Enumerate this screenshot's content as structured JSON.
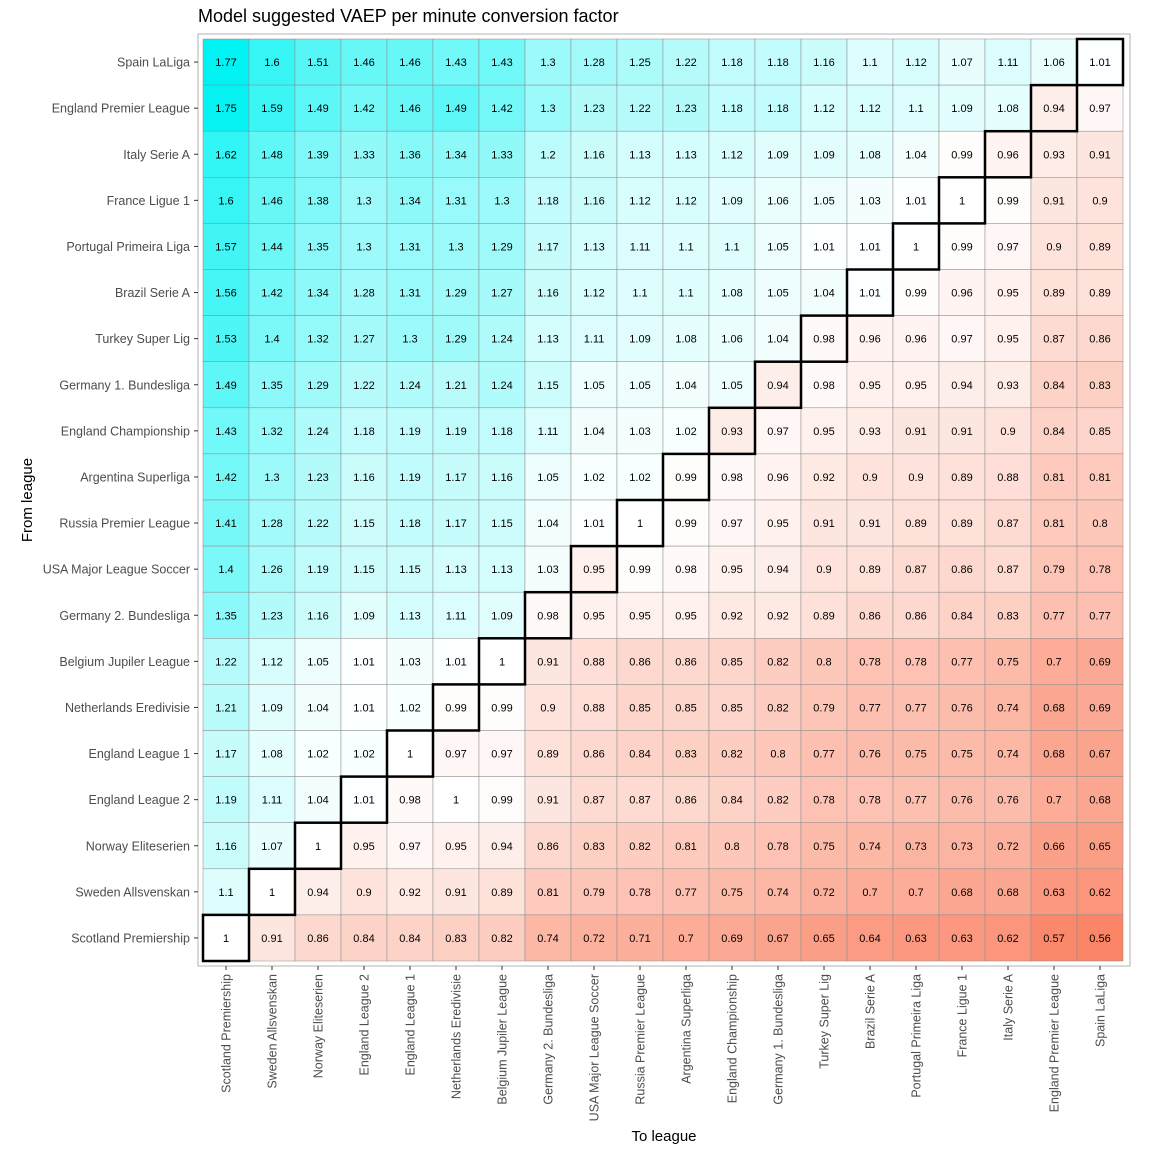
{
  "chart_data": {
    "type": "heatmap",
    "title": "Model suggested VAEP per minute conversion factor",
    "xlabel": "To league",
    "ylabel": "From league",
    "x_categories": [
      "Scotland Premiership",
      "Sweden Allsvenskan",
      "Norway Eliteserien",
      "England League 2",
      "England League 1",
      "Netherlands Eredivisie",
      "Belgium Jupiler League",
      "Germany 2. Bundesliga",
      "USA Major League Soccer",
      "Russia Premier League",
      "Argentina Superliga",
      "England Championship",
      "Germany 1. Bundesliga",
      "Turkey Super Lig",
      "Brazil Serie A",
      "Portugal Primeira Liga",
      "France Ligue 1",
      "Italy Serie A",
      "England Premier League",
      "Spain LaLiga"
    ],
    "y_categories": [
      "Spain LaLiga",
      "England Premier League",
      "Italy Serie A",
      "France Ligue 1",
      "Portugal Primeira Liga",
      "Brazil Serie A",
      "Turkey Super Lig",
      "Germany 1. Bundesliga",
      "England Championship",
      "Argentina Superliga",
      "Russia Premier League",
      "USA Major League Soccer",
      "Germany 2. Bundesliga",
      "Belgium Jupiler League",
      "Netherlands Eredivisie",
      "England League 1",
      "England League 2",
      "Norway Eliteserien",
      "Sweden Allsvenskan",
      "Scotland Premiership"
    ],
    "values": [
      [
        1.77,
        1.6,
        1.51,
        1.46,
        1.46,
        1.43,
        1.43,
        1.3,
        1.28,
        1.25,
        1.22,
        1.18,
        1.18,
        1.16,
        1.1,
        1.12,
        1.07,
        1.11,
        1.06,
        1.01
      ],
      [
        1.75,
        1.59,
        1.49,
        1.42,
        1.46,
        1.49,
        1.42,
        1.3,
        1.23,
        1.22,
        1.23,
        1.18,
        1.18,
        1.12,
        1.12,
        1.1,
        1.09,
        1.08,
        0.94,
        0.97
      ],
      [
        1.62,
        1.48,
        1.39,
        1.33,
        1.36,
        1.34,
        1.33,
        1.2,
        1.16,
        1.13,
        1.13,
        1.12,
        1.09,
        1.09,
        1.08,
        1.04,
        0.99,
        0.96,
        0.93,
        0.91
      ],
      [
        1.6,
        1.46,
        1.38,
        1.3,
        1.34,
        1.31,
        1.3,
        1.18,
        1.16,
        1.12,
        1.12,
        1.09,
        1.06,
        1.05,
        1.03,
        1.01,
        1,
        0.99,
        0.91,
        0.9
      ],
      [
        1.57,
        1.44,
        1.35,
        1.3,
        1.31,
        1.3,
        1.29,
        1.17,
        1.13,
        1.11,
        1.1,
        1.1,
        1.05,
        1.01,
        1.01,
        1,
        0.99,
        0.97,
        0.9,
        0.89
      ],
      [
        1.56,
        1.42,
        1.34,
        1.28,
        1.31,
        1.29,
        1.27,
        1.16,
        1.12,
        1.1,
        1.1,
        1.08,
        1.05,
        1.04,
        1.01,
        0.99,
        0.96,
        0.95,
        0.89,
        0.89
      ],
      [
        1.53,
        1.4,
        1.32,
        1.27,
        1.3,
        1.29,
        1.24,
        1.13,
        1.11,
        1.09,
        1.08,
        1.06,
        1.04,
        0.98,
        0.96,
        0.96,
        0.97,
        0.95,
        0.87,
        0.86
      ],
      [
        1.49,
        1.35,
        1.29,
        1.22,
        1.24,
        1.21,
        1.24,
        1.15,
        1.05,
        1.05,
        1.04,
        1.05,
        0.94,
        0.98,
        0.95,
        0.95,
        0.94,
        0.93,
        0.84,
        0.83
      ],
      [
        1.43,
        1.32,
        1.24,
        1.18,
        1.19,
        1.19,
        1.18,
        1.11,
        1.04,
        1.03,
        1.02,
        0.93,
        0.97,
        0.95,
        0.93,
        0.91,
        0.91,
        0.9,
        0.84,
        0.85
      ],
      [
        1.42,
        1.3,
        1.23,
        1.16,
        1.19,
        1.17,
        1.16,
        1.05,
        1.02,
        1.02,
        0.99,
        0.98,
        0.96,
        0.92,
        0.9,
        0.9,
        0.89,
        0.88,
        0.81,
        0.81
      ],
      [
        1.41,
        1.28,
        1.22,
        1.15,
        1.18,
        1.17,
        1.15,
        1.04,
        1.01,
        1,
        0.99,
        0.97,
        0.95,
        0.91,
        0.91,
        0.89,
        0.89,
        0.87,
        0.81,
        0.8
      ],
      [
        1.4,
        1.26,
        1.19,
        1.15,
        1.15,
        1.13,
        1.13,
        1.03,
        0.95,
        0.99,
        0.98,
        0.95,
        0.94,
        0.9,
        0.89,
        0.87,
        0.86,
        0.87,
        0.79,
        0.78
      ],
      [
        1.35,
        1.23,
        1.16,
        1.09,
        1.13,
        1.11,
        1.09,
        0.98,
        0.95,
        0.95,
        0.95,
        0.92,
        0.92,
        0.89,
        0.86,
        0.86,
        0.84,
        0.83,
        0.77,
        0.77
      ],
      [
        1.22,
        1.12,
        1.05,
        1.01,
        1.03,
        1.01,
        1,
        0.91,
        0.88,
        0.86,
        0.86,
        0.85,
        0.82,
        0.8,
        0.78,
        0.78,
        0.77,
        0.75,
        0.7,
        0.69
      ],
      [
        1.21,
        1.09,
        1.04,
        1.01,
        1.02,
        0.99,
        0.99,
        0.9,
        0.88,
        0.85,
        0.85,
        0.85,
        0.82,
        0.79,
        0.77,
        0.77,
        0.76,
        0.74,
        0.68,
        0.69
      ],
      [
        1.17,
        1.08,
        1.02,
        1.02,
        1,
        0.97,
        0.97,
        0.89,
        0.86,
        0.84,
        0.83,
        0.82,
        0.8,
        0.77,
        0.76,
        0.75,
        0.75,
        0.74,
        0.68,
        0.67
      ],
      [
        1.19,
        1.11,
        1.04,
        1.01,
        0.98,
        1,
        0.99,
        0.91,
        0.87,
        0.87,
        0.86,
        0.84,
        0.82,
        0.78,
        0.78,
        0.77,
        0.76,
        0.76,
        0.7,
        0.68
      ],
      [
        1.16,
        1.07,
        1,
        0.95,
        0.97,
        0.95,
        0.94,
        0.86,
        0.83,
        0.82,
        0.81,
        0.8,
        0.78,
        0.75,
        0.74,
        0.73,
        0.73,
        0.72,
        0.66,
        0.65
      ],
      [
        1.1,
        1,
        0.94,
        0.9,
        0.92,
        0.91,
        0.89,
        0.81,
        0.79,
        0.78,
        0.77,
        0.75,
        0.74,
        0.72,
        0.7,
        0.7,
        0.68,
        0.68,
        0.63,
        0.62
      ],
      [
        1,
        0.91,
        0.86,
        0.84,
        0.84,
        0.83,
        0.82,
        0.74,
        0.72,
        0.71,
        0.7,
        0.69,
        0.67,
        0.65,
        0.64,
        0.63,
        0.63,
        0.62,
        0.57,
        0.56
      ]
    ],
    "color_scale": {
      "low": "#FA8567",
      "mid": "#FFFFFF",
      "high": "#00F2F2",
      "low_value": 0.56,
      "mid_value": 1.0,
      "high_value": 1.77
    },
    "highlight": "diagonal (from league = to league)",
    "legend": "none",
    "grid": true
  }
}
